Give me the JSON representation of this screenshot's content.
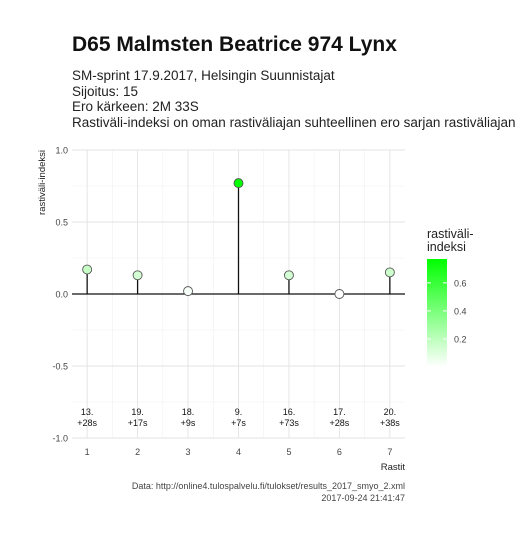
{
  "header": {
    "title": "D65 Malmsten Beatrice 974 Lynx",
    "subtitle_lines": [
      "SM-sprint 17.9.2017, Helsingin Suunnistajat",
      "Sijoitus: 15",
      "Ero kärkeen: 2M 33S",
      "Rastiväli-indeksi on oman rastiväliajan suhteellinen ero sarjan rastiväliajan kes"
    ]
  },
  "caption": {
    "line1": "Data: http://online4.tulospalvelu.fi/tulokset/results_2017_smyo_2.xml",
    "line2": "2017-09-24 21:41:47"
  },
  "chart_data": {
    "type": "lollipop",
    "xlabel": "Rastit",
    "ylabel": "rastiväli-indeksi",
    "x": [
      1,
      2,
      3,
      4,
      5,
      6,
      7
    ],
    "values": [
      0.17,
      0.13,
      0.02,
      0.77,
      0.13,
      0.0,
      0.15
    ],
    "point_labels": [
      [
        "13.",
        "+28s"
      ],
      [
        "19.",
        "+17s"
      ],
      [
        "18.",
        "+9s"
      ],
      [
        "9.",
        "+7s"
      ],
      [
        "16.",
        "+73s"
      ],
      [
        "17.",
        "+28s"
      ],
      [
        "20.",
        "+38s"
      ]
    ],
    "xlim": [
      0.7,
      7.3
    ],
    "ylim": [
      -1.0,
      1.0
    ],
    "yticks": [
      1.0,
      0.5,
      0.0,
      -0.5,
      -1.0
    ],
    "ytick_labels": [
      "1.0",
      "0.5",
      "0.0",
      "-0.5",
      "-1.0"
    ],
    "grid": true,
    "legend": {
      "title_lines": [
        "rastiväli-",
        "indeksi"
      ],
      "placement": "right",
      "color_low": "#ffffff",
      "color_high": "#00ff00",
      "range": [
        0.0,
        0.77
      ],
      "ticks": [
        0.6,
        0.4,
        0.2
      ],
      "tick_labels": [
        "0.6",
        "0.4",
        "0.2"
      ]
    }
  }
}
